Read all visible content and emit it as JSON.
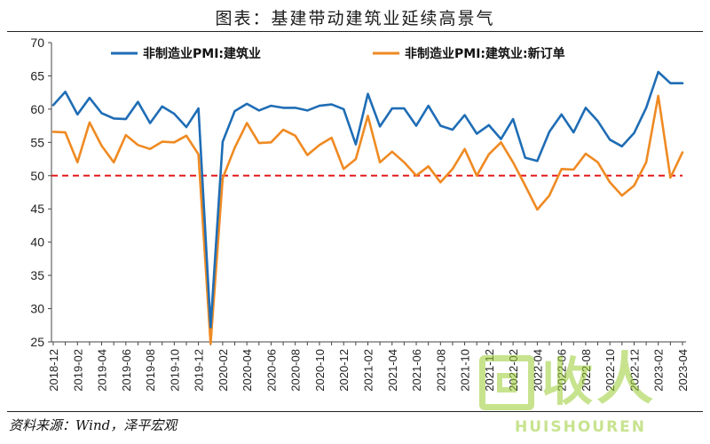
{
  "figure_title": "图表：基建带动建筑业延续高景气",
  "source": "资料来源：Wind，泽平宏观",
  "watermark": {
    "brand_chars": "回收",
    "brand_symbol": "人",
    "brand_text": "HUISHOUREN"
  },
  "colors": {
    "series1": "#1f6db5",
    "series2": "#ef8a22",
    "reference": "#e41a1c"
  },
  "chart_data": {
    "type": "line",
    "title": "",
    "xlabel": "",
    "ylabel": "",
    "ylim": [
      25,
      70
    ],
    "yticks": [
      25,
      30,
      35,
      40,
      45,
      50,
      55,
      60,
      65,
      70
    ],
    "x": [
      "2018-12",
      "2019-01",
      "2019-02",
      "2019-03",
      "2019-04",
      "2019-05",
      "2019-06",
      "2019-07",
      "2019-08",
      "2019-09",
      "2019-10",
      "2019-11",
      "2019-12",
      "2020-01",
      "2020-02",
      "2020-03",
      "2020-04",
      "2020-05",
      "2020-06",
      "2020-07",
      "2020-08",
      "2020-09",
      "2020-10",
      "2020-11",
      "2020-12",
      "2021-01",
      "2021-02",
      "2021-03",
      "2021-04",
      "2021-05",
      "2021-06",
      "2021-07",
      "2021-08",
      "2021-09",
      "2021-10",
      "2021-11",
      "2021-12",
      "2022-01",
      "2022-02",
      "2022-03",
      "2022-04",
      "2022-05",
      "2022-06",
      "2022-07",
      "2022-08",
      "2022-09",
      "2022-10",
      "2022-11",
      "2022-12",
      "2023-01",
      "2023-02",
      "2023-03",
      "2023-04"
    ],
    "x_tick_labels": [
      "2018-12",
      "2019-02",
      "2019-04",
      "2019-06",
      "2019-08",
      "2019-10",
      "2019-12",
      "2020-02",
      "2020-04",
      "2020-06",
      "2020-08",
      "2020-10",
      "2020-12",
      "2021-02",
      "2021-04",
      "2021-06",
      "2021-08",
      "2021-10",
      "2021-12",
      "2022-02",
      "2022-04",
      "2022-06",
      "2022-08",
      "2022-10",
      "2022-12",
      "2023-02",
      "2023-04"
    ],
    "grid": false,
    "legend_position": "top",
    "series": [
      {
        "name": "非制造业PMI:建筑业",
        "values": [
          60.6,
          62.6,
          59.2,
          61.7,
          59.4,
          58.6,
          58.5,
          61.1,
          57.9,
          60.4,
          59.3,
          57.3,
          60.1,
          27.2,
          55.1,
          59.7,
          60.8,
          59.8,
          60.5,
          60.2,
          60.2,
          59.8,
          60.5,
          60.7,
          60.0,
          54.7,
          62.3,
          57.4,
          60.1,
          60.1,
          57.5,
          60.5,
          57.5,
          56.9,
          59.1,
          56.3,
          57.6,
          55.5,
          58.5,
          52.7,
          52.2,
          56.6,
          59.2,
          56.5,
          60.2,
          58.2,
          55.4,
          54.4,
          56.4,
          60.2,
          65.6,
          63.9,
          63.9
        ]
      },
      {
        "name": "非制造业PMI:建筑业:新订单",
        "values": [
          56.6,
          56.5,
          52.0,
          58.0,
          54.5,
          52.0,
          56.1,
          54.6,
          54.0,
          55.1,
          55.0,
          56.0,
          53.2,
          24.7,
          49.6,
          54.2,
          57.9,
          54.9,
          55.0,
          56.9,
          56.0,
          53.1,
          54.6,
          55.7,
          51.0,
          52.5,
          59.0,
          52.0,
          53.6,
          52.0,
          50.0,
          51.4,
          49.0,
          51.0,
          54.0,
          50.0,
          53.2,
          55.0,
          52.0,
          48.5,
          44.9,
          47.0,
          51.0,
          50.9,
          53.3,
          52.0,
          49.0,
          47.0,
          48.5,
          52.0,
          62.0,
          49.7,
          53.5
        ]
      }
    ],
    "reference_line": {
      "y": 50
    }
  }
}
